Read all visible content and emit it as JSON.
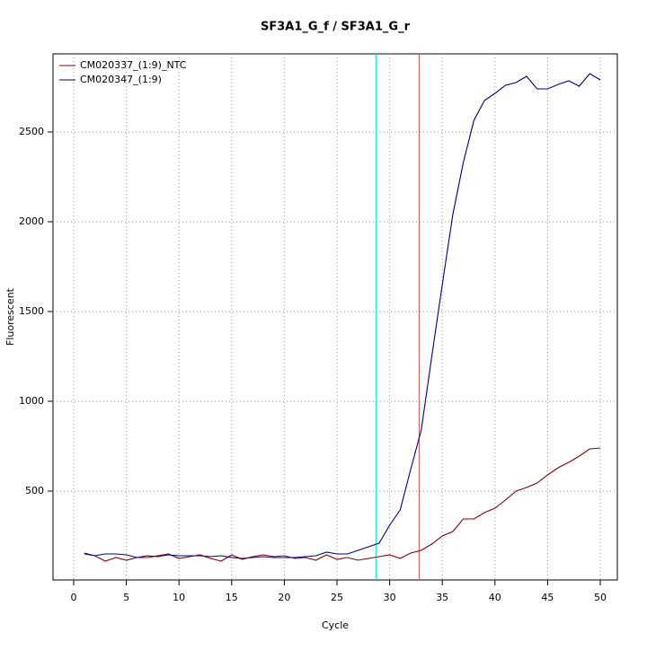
{
  "chart_data": {
    "type": "line",
    "title": "SF3A1_G_f / SF3A1_G_r",
    "x_label": "Cycle",
    "y_label": "Fluorescent",
    "x": [
      1,
      2,
      3,
      4,
      5,
      6,
      7,
      8,
      9,
      10,
      11,
      12,
      13,
      14,
      15,
      16,
      17,
      18,
      19,
      20,
      21,
      22,
      23,
      24,
      25,
      26,
      27,
      28,
      29,
      30,
      31,
      32,
      33,
      34,
      35,
      36,
      37,
      38,
      39,
      40,
      41,
      42,
      43,
      44,
      45,
      46,
      47,
      48,
      49,
      50
    ],
    "series": [
      {
        "name": "CM020337_(1:9)_NTC",
        "color": "#8b0000",
        "values": [
          150,
          140,
          110,
          130,
          115,
          130,
          130,
          140,
          150,
          125,
          135,
          145,
          125,
          110,
          145,
          120,
          135,
          145,
          135,
          140,
          125,
          130,
          115,
          145,
          120,
          130,
          115,
          125,
          135,
          145,
          125,
          155,
          170,
          205,
          250,
          275,
          345,
          345,
          380,
          405,
          450,
          500,
          520,
          545,
          590,
          630,
          660,
          695,
          735,
          740
        ]
      },
      {
        "name": "CM020347_(1:9)",
        "color": "#000080",
        "values": [
          155,
          140,
          150,
          150,
          145,
          130,
          140,
          135,
          145,
          140,
          140,
          140,
          135,
          140,
          130,
          125,
          130,
          135,
          130,
          130,
          130,
          135,
          140,
          160,
          150,
          150,
          170,
          190,
          210,
          310,
          395,
          620,
          840,
          1250,
          1650,
          2040,
          2330,
          2565,
          2675,
          2715,
          2760,
          2775,
          2810,
          2740,
          2740,
          2765,
          2785,
          2755,
          2825,
          2790
        ]
      }
    ],
    "vlines": [
      {
        "x": 28.7,
        "color": "#00e5e5"
      },
      {
        "x": 32.8,
        "color": "#cd5555"
      }
    ],
    "xlim": [
      -1.96,
      51.62
    ],
    "ylim": [
      5,
      2935
    ],
    "xticks": [
      0,
      5,
      10,
      15,
      20,
      25,
      30,
      35,
      40,
      45,
      50
    ],
    "yticks": [
      500,
      1000,
      1500,
      2000,
      2500
    ],
    "grid": true,
    "legend": "top-left"
  }
}
